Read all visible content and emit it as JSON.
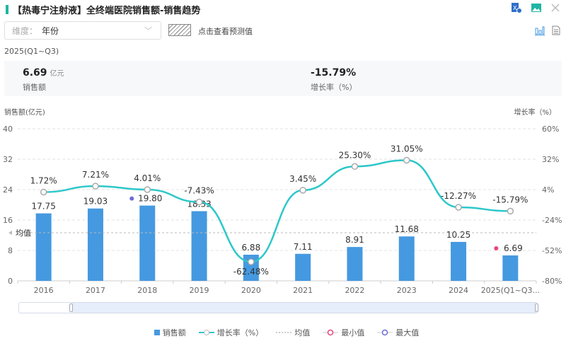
{
  "header": {
    "title": "【热毒宁注射液】全终端医院销售额-销售趋势",
    "icons": [
      "excel-export-icon",
      "image-export-icon",
      "close-icon",
      "bar-chart-view-icon",
      "table-view-icon"
    ]
  },
  "filter": {
    "label": "维度：",
    "value": "年份"
  },
  "forecast_label": "点击查看预测值",
  "period": "2025(Q1~Q3)",
  "kpis": [
    {
      "value": "6.69",
      "unit": "亿元",
      "label": "销售额"
    },
    {
      "value": "-15.79%",
      "label": "增长率（%）"
    }
  ],
  "chart_data": {
    "type": "bar",
    "categories": [
      "2016",
      "2017",
      "2018",
      "2019",
      "2020",
      "2021",
      "2022",
      "2023",
      "2024",
      "2025(Q1~Q3..."
    ],
    "series": [
      {
        "name": "销售额",
        "type": "bar",
        "axis": "left",
        "values": [
          17.75,
          19.03,
          19.8,
          18.33,
          6.88,
          7.11,
          8.91,
          11.68,
          10.25,
          6.69
        ],
        "labels": [
          "17.75",
          "19.03",
          "19.80",
          "18.33",
          "6.88",
          "7.11",
          "8.91",
          "11.68",
          "10.25",
          "6.69"
        ],
        "color": "#4599e0"
      },
      {
        "name": "增长率（%）",
        "type": "line",
        "axis": "right",
        "values": [
          1.72,
          7.21,
          4.01,
          -7.43,
          -62.48,
          3.45,
          25.3,
          31.05,
          -12.27,
          -15.79
        ],
        "labels": [
          "1.72%",
          "7.21%",
          "4.01%",
          "-7.43%",
          "-62.48%",
          "3.45%",
          "25.30%",
          "31.05%",
          "-12.27%",
          "-15.79%"
        ],
        "color": "#2ec7c9"
      }
    ],
    "ylabel": "销售额(亿元)",
    "y2label": "增长率（%）",
    "ylim": [
      0,
      40
    ],
    "yticks": [
      "0",
      "8",
      "16",
      "24",
      "32",
      "40"
    ],
    "y2lim": [
      -80,
      60
    ],
    "y2ticks": [
      "-80%",
      "-52%",
      "-24%",
      "4%",
      "32%",
      "60%"
    ],
    "average_label": "均值",
    "max_color": "#6b6bd8",
    "min_color": "#e8457a",
    "grid": true,
    "legend_position": "bottom",
    "legend": [
      "销售额",
      "增长率（%）",
      "均值",
      "最小值",
      "最大值"
    ]
  }
}
